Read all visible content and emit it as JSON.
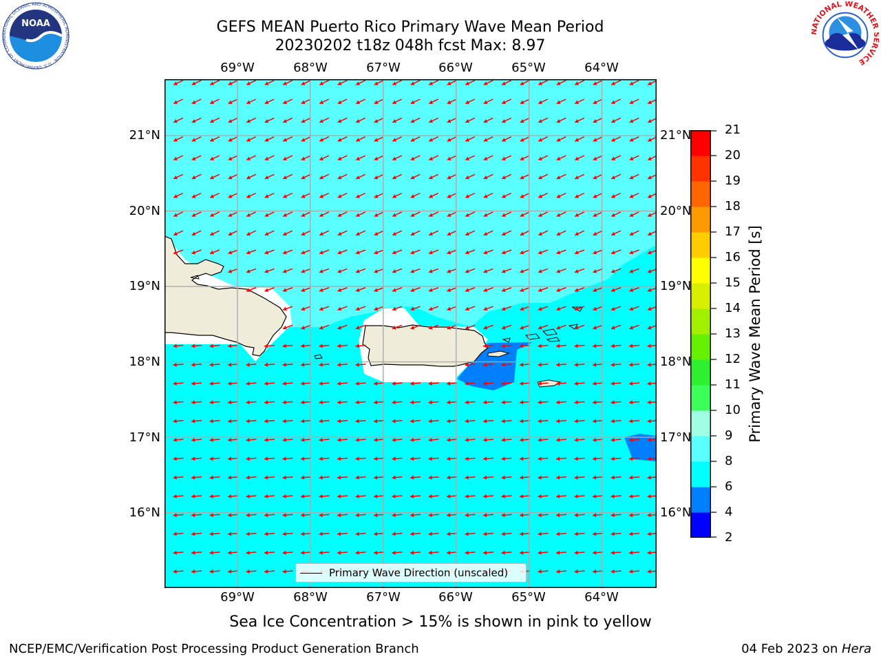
{
  "title": {
    "line1": "GEFS MEAN Puerto Rico Primary Wave Mean Period",
    "line2": "20230202 t18z 048h fcst   Max: 8.97"
  },
  "map": {
    "lon_range": [
      -70,
      -63.25
    ],
    "lat_range": [
      15,
      21.75
    ],
    "lon_ticks": [
      "69°W",
      "68°W",
      "67°W",
      "66°W",
      "65°W",
      "64°W"
    ],
    "lat_ticks": [
      "21°N",
      "20°N",
      "19°N",
      "18°N",
      "17°N",
      "16°N"
    ],
    "grid": true,
    "arrow_color": "#ff0000",
    "land_color": "#efecd9",
    "colors": {
      "sea_light": "#5affff",
      "sea_mid": "#00ffff",
      "sea_low": "#0080ff"
    }
  },
  "legend": {
    "label": "Primary Wave Direction (unscaled)",
    "placement": "bottom-center"
  },
  "colorbar": {
    "label": "Primary Wave Mean Period [s]",
    "ticks": [
      "2",
      "4",
      "6",
      "8",
      "9",
      "10",
      "11",
      "12",
      "13",
      "14",
      "15",
      "16",
      "17",
      "18",
      "19",
      "20",
      "21"
    ],
    "colors": [
      "#0000ff",
      "#0080ff",
      "#00ffff",
      "#5affff",
      "#9effe4",
      "#3dff5a",
      "#2ef02e",
      "#66ef00",
      "#a3ef00",
      "#d8ef00",
      "#ffff00",
      "#ffcc00",
      "#ff9900",
      "#ff6600",
      "#ff3300",
      "#ff0000"
    ]
  },
  "caption": "Sea Ice Concentration > 15% is shown in pink to yellow",
  "footer": {
    "left": "NCEP/EMC/Verification Post Processing Product Generation Branch",
    "right_prefix": "04 Feb 2023 on ",
    "right_host": "Hera"
  },
  "logos": {
    "left": "NOAA",
    "left_ring": "NATIONAL OCEANIC AND ATMOSPHERIC ADMINISTRATION · U.S. DEPARTMENT OF COMMERCE",
    "right_ring": "NATIONAL WEATHER SERVICE"
  }
}
